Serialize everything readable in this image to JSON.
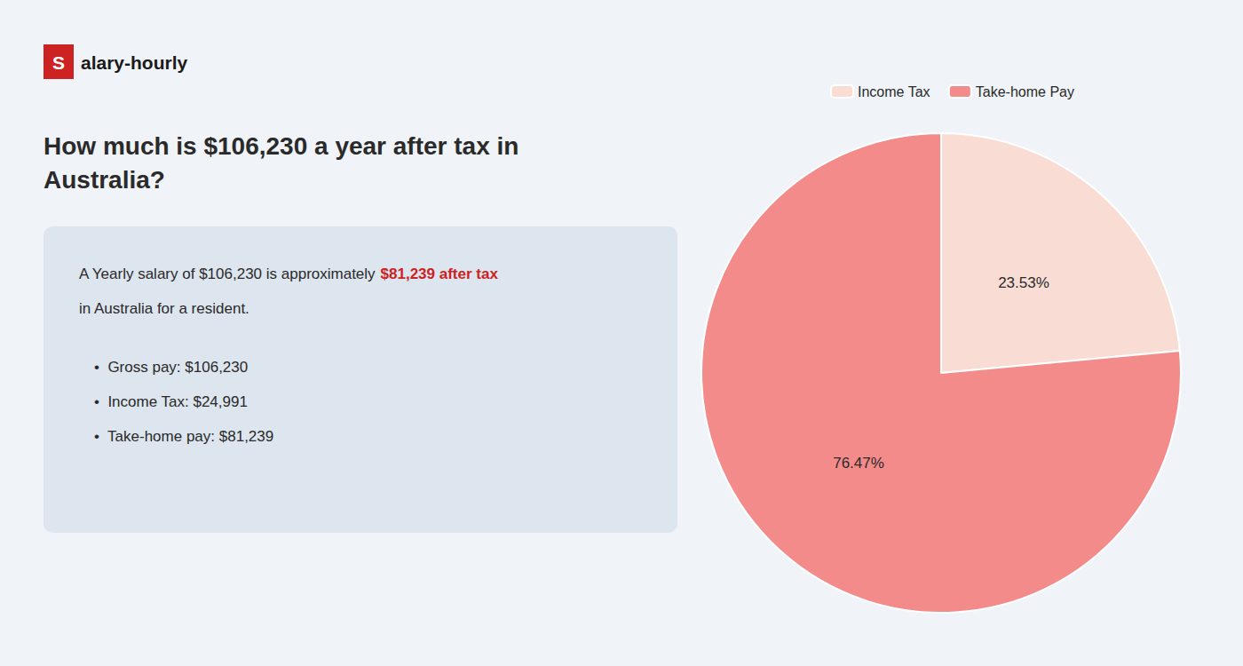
{
  "chart_data": {
    "type": "pie",
    "title": "How much is $106,230 a year after tax in\nAustralia?",
    "categories": [
      "Income Tax",
      "Take-home Pay"
    ],
    "values": [
      23.53,
      76.47
    ],
    "value_labels": [
      "23.53%",
      "76.47%"
    ],
    "data_labels": true,
    "colors": [
      "#f9ddd5",
      "#f48b8b"
    ],
    "legend": "top",
    "annotations": [
      {
        "text": "S"
      },
      {
        "text": "alary-hourly"
      },
      {
        "text": "A Yearly salary of $106,230 is approximately "
      },
      {
        "text": "$81,239 after tax",
        "color": "#cc2222"
      },
      {
        "text": "in Australia for a resident."
      },
      {
        "text": "•  Gross pay: $106,230"
      },
      {
        "text": "•  Income Tax: $24,991"
      },
      {
        "text": "•  Take-home pay: $81,239"
      }
    ]
  }
}
